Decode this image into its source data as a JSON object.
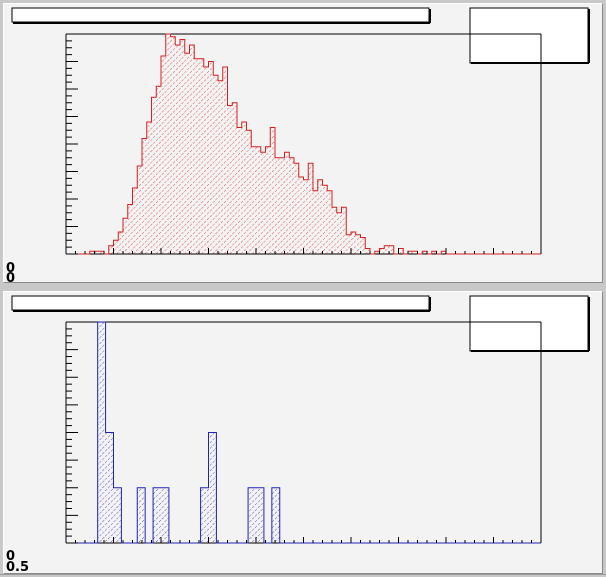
{
  "canvas": {
    "background": "#f3f3f3"
  },
  "chart_data": [
    {
      "type": "bar",
      "histogram": true,
      "color": "#d42020",
      "fill_pattern": "hatched",
      "title": "",
      "xlabel": "",
      "ylabel": "",
      "xlim": [
        0,
        100
      ],
      "ylim": [
        0,
        80
      ],
      "bin_width": 1,
      "grid": false,
      "legend": "top-right",
      "y_tick_labels": [
        "0",
        "0"
      ],
      "values": [
        0,
        0,
        0,
        0,
        0,
        1,
        1,
        1,
        0,
        3,
        5,
        8,
        13,
        18,
        24,
        32,
        42,
        48,
        57,
        61,
        72,
        80,
        79,
        76,
        78,
        73,
        76,
        71,
        71,
        68,
        70,
        65,
        63,
        68,
        54,
        55,
        46,
        48,
        45,
        39,
        39,
        37,
        39,
        46,
        35,
        35,
        37,
        35,
        33,
        28,
        27,
        33,
        23,
        27,
        25,
        23,
        17,
        15,
        17,
        7,
        8,
        7,
        6,
        2,
        0,
        1,
        2,
        3,
        3,
        0,
        2,
        0,
        1,
        1,
        0,
        1,
        0,
        1,
        0,
        1,
        0,
        0,
        0,
        0,
        0,
        0,
        0,
        0,
        0,
        0,
        0,
        0,
        0,
        0,
        0,
        0,
        0,
        0,
        0,
        0
      ]
    },
    {
      "type": "bar",
      "histogram": true,
      "color": "#2222bb",
      "fill_pattern": "hatched",
      "title": "",
      "xlabel": "",
      "ylabel": "",
      "xlim": [
        0,
        60
      ],
      "ylim": [
        0,
        8
      ],
      "bin_width": 1,
      "grid": false,
      "legend": "top-right",
      "y_tick_labels": [
        "0",
        "0.5"
      ],
      "values": [
        0,
        0,
        0,
        0,
        8,
        4,
        2,
        0,
        0,
        2,
        0,
        2,
        2,
        0,
        0,
        0,
        0,
        2,
        4,
        0,
        0,
        0,
        0,
        2,
        2,
        0,
        2,
        0,
        0,
        0,
        0,
        0,
        0,
        0,
        0,
        0,
        0,
        0,
        0,
        0,
        0,
        0,
        0,
        0,
        0,
        0,
        0,
        0,
        0,
        0,
        0,
        0,
        0,
        0,
        0,
        0,
        0,
        0,
        0,
        0
      ]
    }
  ]
}
